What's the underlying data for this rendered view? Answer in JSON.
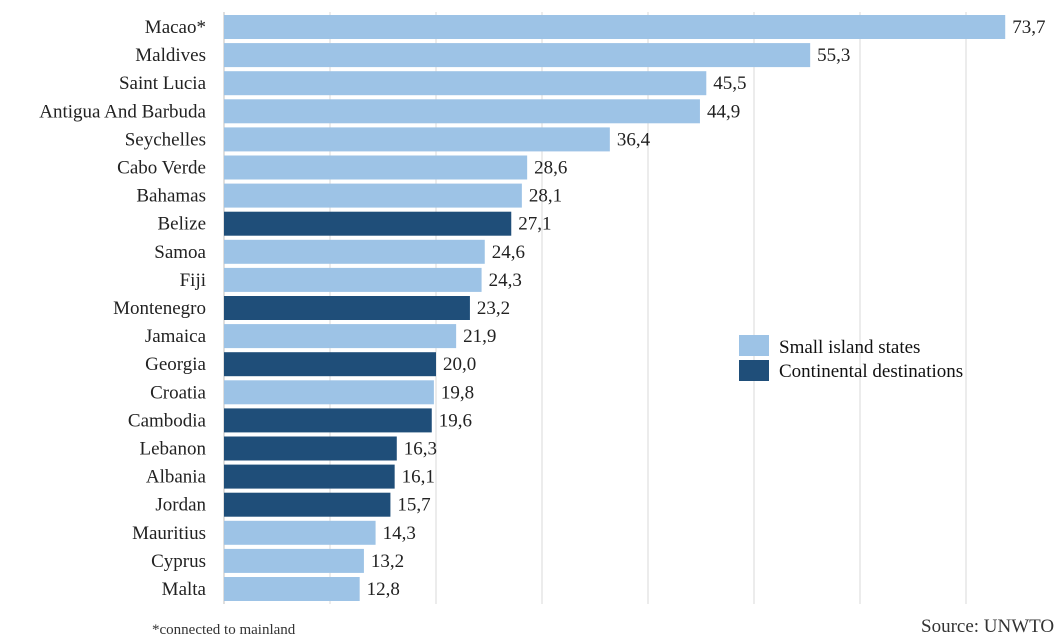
{
  "chart_data": {
    "type": "bar",
    "orientation": "horizontal",
    "categories": [
      "Macao*",
      "Maldives",
      "Saint Lucia",
      "Antigua And Barbuda",
      "Seychelles",
      "Cabo Verde",
      "Bahamas",
      "Belize",
      "Samoa",
      "Fiji",
      "Montenegro",
      "Jamaica",
      "Georgia",
      "Croatia",
      "Cambodia",
      "Lebanon",
      "Albania",
      "Jordan",
      "Mauritius",
      "Cyprus",
      "Malta"
    ],
    "values": [
      73.7,
      55.3,
      45.5,
      44.9,
      36.4,
      28.6,
      28.1,
      27.1,
      24.6,
      24.3,
      23.2,
      21.9,
      20.0,
      19.8,
      19.6,
      16.3,
      16.1,
      15.7,
      14.3,
      13.2,
      12.8
    ],
    "value_labels": [
      "73,7",
      "55,3",
      "45,5",
      "44,9",
      "36,4",
      "28,6",
      "28,1",
      "27,1",
      "24,6",
      "24,3",
      "23,2",
      "21,9",
      "20,0",
      "19,8",
      "19,6",
      "16,3",
      "16,1",
      "15,7",
      "14,3",
      "13,2",
      "12,8"
    ],
    "groups": [
      "island",
      "island",
      "island",
      "island",
      "island",
      "island",
      "island",
      "continental",
      "island",
      "island",
      "continental",
      "island",
      "continental",
      "island",
      "continental",
      "continental",
      "continental",
      "continental",
      "island",
      "island",
      "island"
    ],
    "legend": [
      {
        "key": "island",
        "label": "Small island states",
        "color": "#9dc3e6"
      },
      {
        "key": "continental",
        "label": "Continental destinations",
        "color": "#1f4e79"
      }
    ],
    "legend_position": "right-middle",
    "xlim": [
      0,
      80
    ],
    "grid": "vertical",
    "note": "*connected to mainland",
    "source": "Source: UNWTO"
  }
}
